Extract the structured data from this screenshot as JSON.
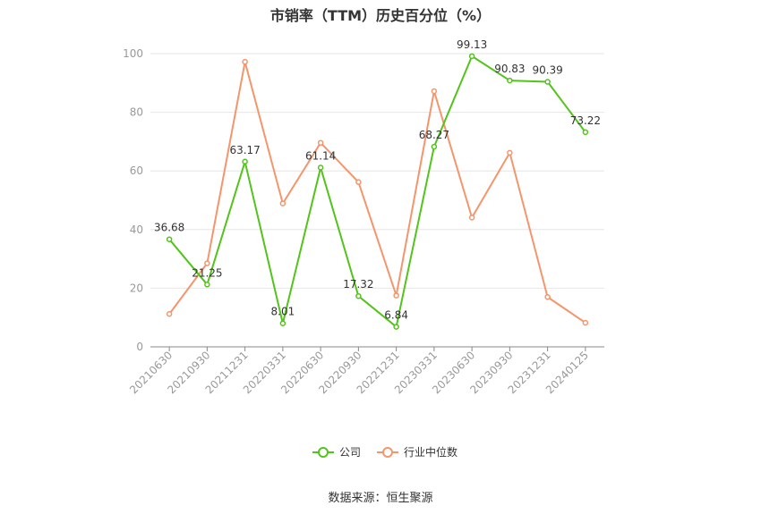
{
  "chart_data": {
    "type": "line",
    "title": "市销率（TTM）历史百分位（%）",
    "categories": [
      "20210630",
      "20210930",
      "20211231",
      "20220331",
      "20220630",
      "20220930",
      "20221231",
      "20230331",
      "20230630",
      "20230930",
      "20231231",
      "20240125"
    ],
    "ylim": [
      0,
      100
    ],
    "yticks": [
      0,
      20,
      40,
      60,
      80,
      100
    ],
    "grid": true,
    "legend_position": "bottom",
    "series": [
      {
        "name": "公司",
        "color": "#52c41a",
        "values": [
          36.68,
          21.25,
          63.17,
          8.01,
          61.14,
          17.32,
          6.84,
          68.27,
          99.13,
          90.83,
          90.39,
          73.22
        ],
        "labels": [
          "36.68",
          "21.25",
          "63.17",
          "8.01",
          "61.14",
          "17.32",
          "6.84",
          "68.27",
          "99.13",
          "90.83",
          "90.39",
          "73.22"
        ]
      },
      {
        "name": "行业中位数",
        "color": "#f5956b",
        "values": [
          11.2,
          28.5,
          97.2,
          48.9,
          69.6,
          56.2,
          17.5,
          87.2,
          44.1,
          66.2,
          17.0,
          8.2
        ]
      }
    ]
  },
  "source_text": "数据来源：恒生聚源"
}
